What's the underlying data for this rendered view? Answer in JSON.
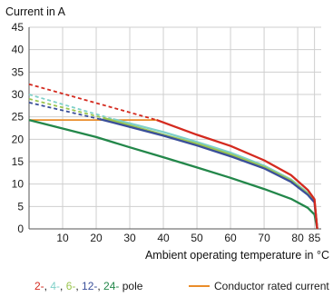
{
  "chart_data": {
    "type": "line",
    "ylabel": "Current in A",
    "xlabel": "Ambient operating temperature in °C",
    "xlim": [
      0,
      87
    ],
    "ylim": [
      0,
      45
    ],
    "x_ticks": [
      10,
      20,
      30,
      40,
      50,
      60,
      70,
      80,
      85
    ],
    "y_ticks": [
      0,
      5,
      10,
      15,
      20,
      25,
      30,
      35,
      40,
      45
    ],
    "grid": true,
    "series": [
      {
        "name": "2-",
        "color": "#d42a1f",
        "dashed": [
          [
            0,
            32.3
          ],
          [
            38,
            24.3
          ]
        ],
        "solid": [
          [
            38,
            24.3
          ],
          [
            50,
            21.0
          ],
          [
            60,
            18.5
          ],
          [
            70,
            15.3
          ],
          [
            78,
            12.0
          ],
          [
            83,
            8.7
          ],
          [
            85,
            6.6
          ],
          [
            85.8,
            0
          ]
        ]
      },
      {
        "name": "4-",
        "color": "#7fd0c8",
        "dashed": [
          [
            0,
            30.0
          ],
          [
            25,
            24.5
          ]
        ],
        "solid": [
          [
            25,
            24.5
          ],
          [
            40,
            21.6
          ],
          [
            50,
            19.4
          ],
          [
            60,
            17.0
          ],
          [
            70,
            14.1
          ],
          [
            78,
            11.0
          ],
          [
            83,
            8.0
          ],
          [
            85,
            6.2
          ],
          [
            85.8,
            0
          ]
        ]
      },
      {
        "name": "6-",
        "color": "#9bc54f",
        "dashed": [
          [
            0,
            29.0
          ],
          [
            22,
            24.8
          ]
        ],
        "solid": [
          [
            22,
            24.8
          ],
          [
            40,
            21.0
          ],
          [
            50,
            19.0
          ],
          [
            60,
            16.6
          ],
          [
            70,
            13.8
          ],
          [
            78,
            10.8
          ],
          [
            83,
            7.8
          ],
          [
            85,
            6.0
          ],
          [
            85.8,
            0
          ]
        ]
      },
      {
        "name": "12-",
        "color": "#3a4f9a",
        "dashed": [
          [
            0,
            28.2
          ],
          [
            21,
            24.5
          ]
        ],
        "solid": [
          [
            21,
            24.5
          ],
          [
            40,
            20.8
          ],
          [
            50,
            18.6
          ],
          [
            60,
            16.2
          ],
          [
            70,
            13.5
          ],
          [
            78,
            10.5
          ],
          [
            83,
            7.6
          ],
          [
            85,
            5.9
          ],
          [
            85.8,
            0
          ]
        ]
      },
      {
        "name": "24-",
        "color": "#23874a",
        "dashed": [],
        "solid": [
          [
            0,
            24.3
          ],
          [
            10,
            22.4
          ],
          [
            20,
            20.5
          ],
          [
            30,
            18.2
          ],
          [
            40,
            16.0
          ],
          [
            50,
            13.7
          ],
          [
            60,
            11.4
          ],
          [
            70,
            8.9
          ],
          [
            78,
            6.7
          ],
          [
            83,
            4.7
          ],
          [
            85,
            3.2
          ],
          [
            85.8,
            0
          ]
        ]
      },
      {
        "name": "Conductor rated current",
        "color": "#ea8d2a",
        "dashed": [],
        "solid": [
          [
            0,
            24.3
          ],
          [
            38,
            24.3
          ]
        ]
      }
    ],
    "legend": {
      "position": "bottom",
      "pole_parts": [
        {
          "text": "2-",
          "color": "#d42a1f"
        },
        {
          "text": ", ",
          "color": "#1a1a1a"
        },
        {
          "text": "4-",
          "color": "#7fd0c8"
        },
        {
          "text": ", ",
          "color": "#1a1a1a"
        },
        {
          "text": "6-",
          "color": "#9bc54f"
        },
        {
          "text": ", ",
          "color": "#1a1a1a"
        },
        {
          "text": "12-",
          "color": "#3a4f9a"
        },
        {
          "text": ", ",
          "color": "#1a1a1a"
        },
        {
          "text": "24-",
          "color": "#23874a"
        },
        {
          "text": " pole",
          "color": "#1a1a1a"
        }
      ],
      "rated_label": "Conductor rated current",
      "rated_color": "#ea8d2a"
    }
  }
}
